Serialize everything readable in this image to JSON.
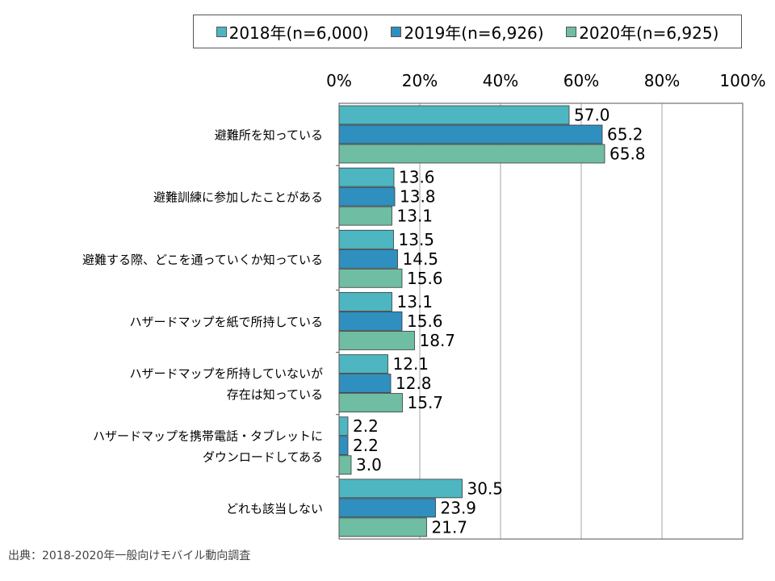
{
  "chart_data": {
    "type": "bar",
    "orientation": "horizontal",
    "categories": [
      [
        "避難所を知っている"
      ],
      [
        "避難訓練に参加したことがある"
      ],
      [
        "避難する際、どこを通っていくか知っている"
      ],
      [
        "ハザードマップを紙で所持している"
      ],
      [
        "ハザードマップを所持していないが",
        "存在は知っている"
      ],
      [
        "ハザードマップを携帯電話・タブレットに",
        "ダウンロードしてある"
      ],
      [
        "どれも該当しない"
      ]
    ],
    "series": [
      {
        "name": "2018年(n=6,000)",
        "color": "#4db6c0",
        "values": [
          57.0,
          13.6,
          13.5,
          13.1,
          12.1,
          2.2,
          30.5
        ]
      },
      {
        "name": "2019年(n=6,926)",
        "color": "#2f8fbf",
        "values": [
          65.2,
          13.8,
          14.5,
          15.6,
          12.8,
          2.2,
          23.9
        ]
      },
      {
        "name": "2020年(n=6,925)",
        "color": "#6fbda3",
        "values": [
          65.8,
          13.1,
          15.6,
          18.7,
          15.7,
          3.0,
          21.7
        ]
      }
    ],
    "xlim": [
      0,
      100
    ],
    "x_ticks": [
      "0%",
      "20%",
      "40%",
      "60%",
      "80%",
      "100%"
    ],
    "grid": true,
    "legend_position": "top"
  },
  "source_text": "出典：2018-2020年一般向けモバイル動向調査"
}
